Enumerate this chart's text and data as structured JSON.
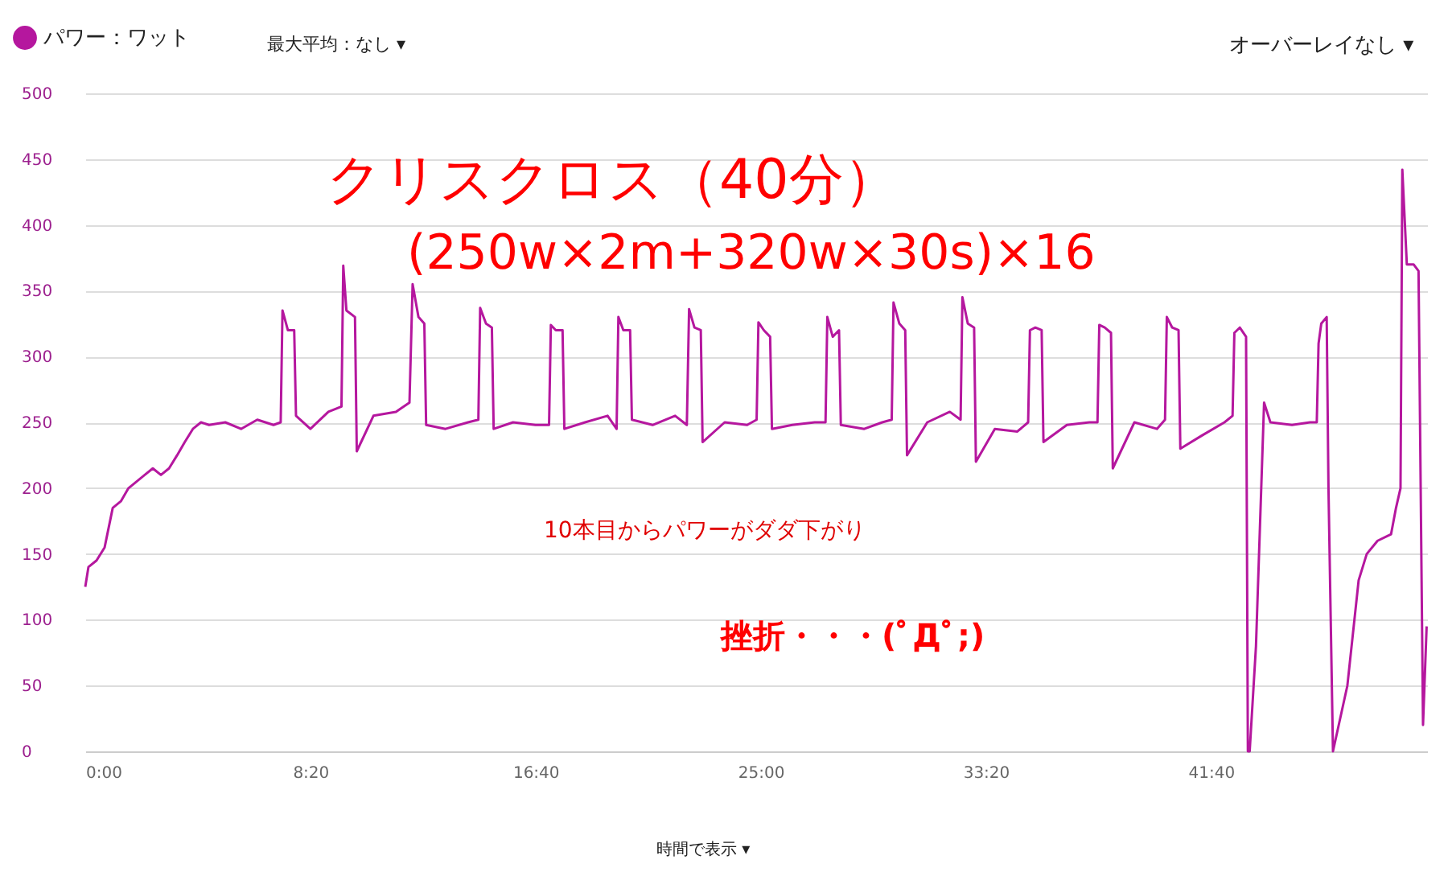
{
  "chart_data": {
    "type": "line",
    "series": [
      {
        "name": "パワー：ワット",
        "color": "#b5179e",
        "x": [
          0,
          7,
          25,
          43,
          61,
          79,
          96,
          114,
          132,
          150,
          168,
          186,
          204,
          221,
          239,
          257,
          275,
          311,
          346,
          382,
          418,
          434,
          438,
          450,
          464,
          468,
          500,
          540,
          569,
          573,
          580,
          599,
          603,
          640,
          690,
          720,
          727,
          740,
          753,
          757,
          800,
          850,
          873,
          877,
          890,
          903,
          907,
          950,
          1000,
          1030,
          1034,
          1045,
          1060,
          1064,
          1110,
          1160,
          1180,
          1184,
          1195,
          1210,
          1214,
          1260,
          1310,
          1336,
          1341,
          1353,
          1367,
          1371,
          1420,
          1470,
          1491,
          1495,
          1507,
          1521,
          1525,
          1570,
          1620,
          1644,
          1648,
          1660,
          1674,
          1678,
          1730,
          1770,
          1791,
          1795,
          1808,
          1821,
          1825,
          1870,
          1920,
          1944,
          1948,
          1960,
          1974,
          1978,
          2020,
          2070,
          2094,
          2098,
          2110,
          2124,
          2128,
          2180,
          2230,
          2248,
          2252,
          2264,
          2278,
          2282,
          2330,
          2380,
          2398,
          2402,
          2414,
          2428,
          2432,
          2480,
          2530,
          2548,
          2552,
          2564,
          2578,
          2582,
          2586,
          2600,
          2618,
          2632,
          2680,
          2720,
          2735,
          2739,
          2745,
          2757,
          2761,
          2771,
          2803,
          2828,
          2846,
          2870,
          2900,
          2911,
          2921,
          2925,
          2935,
          2950,
          2961,
          2971,
          2979
        ],
        "values": [
          125,
          140,
          145,
          155,
          185,
          190,
          200,
          205,
          210,
          215,
          210,
          215,
          225,
          235,
          245,
          250,
          248,
          250,
          245,
          252,
          248,
          250,
          335,
          320,
          320,
          255,
          245,
          258,
          262,
          369,
          335,
          330,
          228,
          255,
          258,
          265,
          355,
          330,
          325,
          248,
          245,
          250,
          252,
          337,
          325,
          322,
          245,
          250,
          248,
          248,
          324,
          320,
          320,
          245,
          250,
          255,
          245,
          330,
          320,
          320,
          252,
          248,
          255,
          248,
          336,
          322,
          320,
          235,
          250,
          248,
          252,
          326,
          320,
          315,
          245,
          248,
          250,
          250,
          330,
          315,
          320,
          248,
          245,
          250,
          252,
          341,
          325,
          320,
          225,
          250,
          258,
          252,
          345,
          325,
          322,
          220,
          245,
          243,
          250,
          320,
          322,
          320,
          235,
          248,
          250,
          250,
          324,
          322,
          318,
          215,
          250,
          245,
          252,
          330,
          322,
          320,
          230,
          240,
          250,
          255,
          318,
          322,
          315,
          0,
          0,
          80,
          265,
          250,
          248,
          250,
          250,
          310,
          325,
          330,
          200,
          0,
          50,
          130,
          150,
          160,
          165,
          185,
          200,
          442,
          370,
          370,
          365,
          20,
          95
        ]
      }
    ],
    "xlim": [
      0,
      2980
    ],
    "xticks": [
      {
        "value": 0,
        "label": "0:00"
      },
      {
        "value": 500,
        "label": "8:20"
      },
      {
        "value": 1000,
        "label": "16:40"
      },
      {
        "value": 1500,
        "label": "25:00"
      },
      {
        "value": 2000,
        "label": "33:20"
      },
      {
        "value": 2500,
        "label": "41:40"
      }
    ],
    "ylim": [
      0,
      500
    ],
    "yticks": [
      0,
      50,
      100,
      150,
      200,
      250,
      300,
      350,
      400,
      450,
      500
    ],
    "grid": "y",
    "legend": "top left",
    "marker": "none",
    "line_style": "solid",
    "annotations": [
      "クリスクロス（40分）",
      "(250w×2m+320w×30s)×16",
      "10本目からパワーがダダ下がり",
      "挫折・・・(ﾟДﾟ;)",
      "最大平均：なし ▾",
      "オーバーレイなし ▾",
      "時間で表示 ▾"
    ]
  }
}
